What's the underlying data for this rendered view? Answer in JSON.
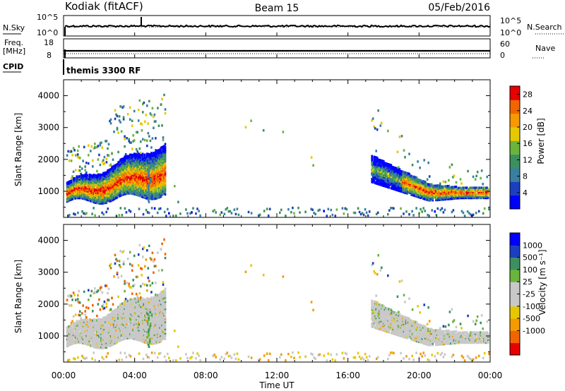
{
  "header": {
    "station": "Kodiak (fitACF)",
    "beam": "Beam 15",
    "date": "05/Feb/2016"
  },
  "noise_panel": {
    "left_label": "N.Sky",
    "right_label": "N.Search",
    "left_ticks": [
      "10^5",
      "10^0"
    ],
    "right_ticks": [
      "10^5",
      "10^0"
    ]
  },
  "freq_panel": {
    "left_label_line1": "Freq.",
    "left_label_line2": "[MHz]",
    "left_ticks": [
      "18",
      "8"
    ],
    "right_label": "Nave",
    "right_ticks": [
      "60",
      "0"
    ]
  },
  "cpid_panel": {
    "label": "CPID",
    "value": "themis 3300 RF"
  },
  "time_axis": {
    "title": "Time UT",
    "ticks": [
      "00:00",
      "04:00",
      "08:00",
      "12:00",
      "16:00",
      "20:00",
      "00:00"
    ],
    "range_hours": [
      0,
      24
    ]
  },
  "colors": {
    "power_scale": [
      "#0000ff",
      "#1c3fbf",
      "#3a7fa0",
      "#3c9060",
      "#6ab43c",
      "#e6c800",
      "#f59a00",
      "#f26400",
      "#e60000"
    ],
    "velocity_scale": [
      "#e60000",
      "#f26400",
      "#f59a00",
      "#e6c800",
      "#c8c8c8",
      "#c8c8c8",
      "#6ab43c",
      "#3c9060",
      "#1c3fbf",
      "#0000ff"
    ]
  },
  "chart_data": [
    {
      "type": "heatmap",
      "name": "power",
      "ylabel": "Slant Range [km]",
      "yticks": [
        "1000",
        "2000",
        "3000",
        "4000"
      ],
      "ylim": [
        180,
        4500
      ],
      "colorbar_label": "Power [dB]",
      "colorbar_ticks": [
        "4",
        "8",
        "12",
        "16",
        "20",
        "24",
        "28"
      ],
      "colorbar_range": [
        0,
        30
      ]
    },
    {
      "type": "heatmap",
      "name": "velocity",
      "ylabel": "Slant Range [km]",
      "yticks": [
        "1000",
        "2000",
        "3000",
        "4000"
      ],
      "ylim": [
        180,
        4500
      ],
      "colorbar_label": "Velocity [m s⁻¹]",
      "colorbar_ticks": [
        "1000",
        "500",
        "100",
        "25",
        "-25",
        "-100",
        "-500",
        "-1000"
      ]
    }
  ]
}
